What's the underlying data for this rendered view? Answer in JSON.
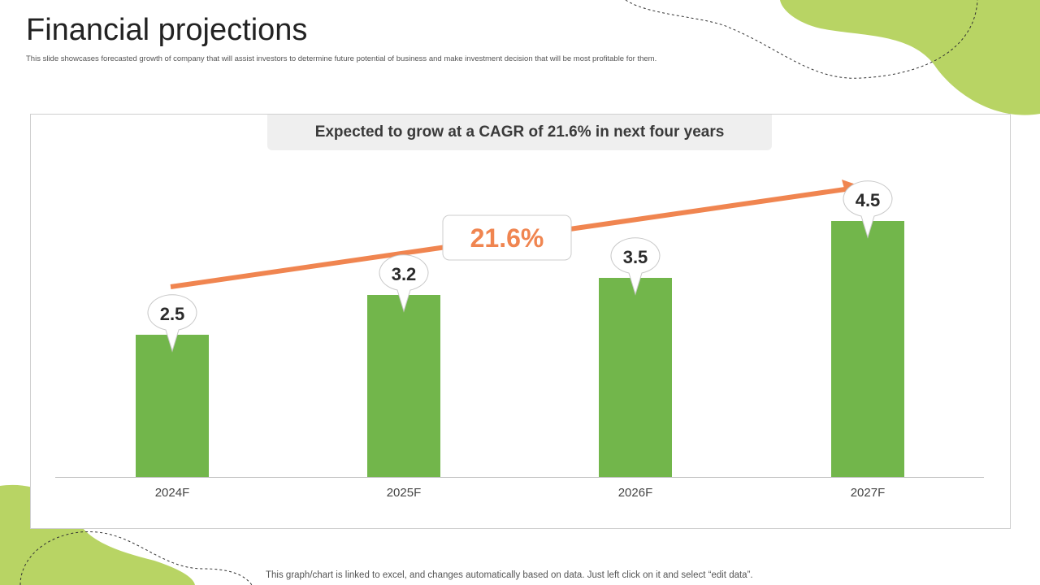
{
  "slide": {
    "title": "Financial projections",
    "subtitle": "This slide showcases forecasted growth of company that will assist investors to determine future potential of business and make investment decision that will be most profitable for them.",
    "footer_note": "This graph/chart is linked to excel, and changes automatically based on data. Just left click on it and select “edit data”."
  },
  "colors": {
    "bar": "#72b64b",
    "arrow": "#f08550",
    "accent_blob": "#b8d464",
    "label_text": "#2b2b2b"
  },
  "chart_data": {
    "type": "bar",
    "title": "Expected to grow at a CAGR of 21.6% in next four years",
    "categories": [
      "2024F",
      "2025F",
      "2026F",
      "2027F"
    ],
    "values": [
      2.5,
      3.2,
      3.5,
      4.5
    ],
    "data_labels": [
      "2.5",
      "3.2",
      "3.5",
      "4.5"
    ],
    "ylim": [
      0,
      5
    ],
    "xlabel": "",
    "ylabel": "",
    "grid": false,
    "annotation": {
      "label": "21.6%",
      "description_type": "trend-arrow"
    }
  }
}
